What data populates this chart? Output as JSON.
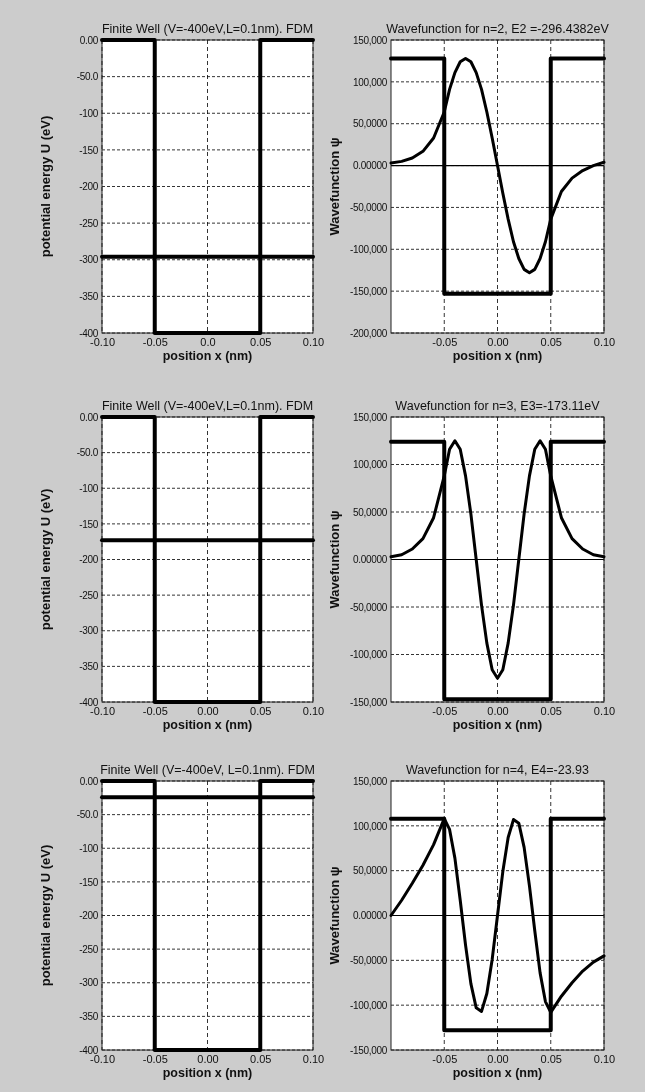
{
  "chart_data": [
    {
      "type": "line",
      "title": "Finite Well (V=-400eV,L=0.1nm). FDM",
      "xlabel": "position  x  (nm)",
      "ylabel": "potential energy U (eV)",
      "xlim": [
        -0.1,
        0.1
      ],
      "ylim": [
        -400,
        0
      ],
      "xticks": [
        {
          "value": -0.1,
          "label": "-0.10"
        },
        {
          "value": -0.05,
          "label": "-0.05"
        },
        {
          "value": 0,
          "label": "0.0"
        },
        {
          "value": 0.05,
          "label": "0.05"
        },
        {
          "value": 0.1,
          "label": "0.10"
        }
      ],
      "yticks": [
        {
          "value": 0,
          "label": "0.00"
        },
        {
          "value": -50,
          "label": "-50.0"
        },
        -100,
        -150,
        -200,
        -250,
        -300,
        -350,
        -400
      ],
      "grid": true,
      "series": [
        {
          "type": "line",
          "color": "#000000",
          "x": [
            -0.1,
            -0.05,
            -0.05,
            0.05,
            0.05,
            0.1
          ],
          "values": [
            0,
            0,
            -400,
            -400,
            0,
            0
          ]
        },
        {
          "type": "line",
          "color": "#000000",
          "x": [
            -0.1,
            0.1
          ],
          "values": [
            -296,
            -296
          ]
        }
      ]
    },
    {
      "type": "line",
      "title": "Wavefunction for n=2, E2 =-296.4382eV",
      "xlabel": "position x (nm)",
      "ylabel": "Wavefunction ψ",
      "xlim": [
        -0.1,
        0.1
      ],
      "ylim": [
        -200000,
        150000
      ],
      "xticks": [
        {
          "value": -0.05,
          "label": "-0.05"
        },
        {
          "value": 0,
          "label": "0.00"
        },
        {
          "value": 0.05,
          "label": "0.05"
        },
        {
          "value": 0.1,
          "label": "0.10"
        }
      ],
      "yticks": [
        {
          "value": 150000,
          "label": "150,000"
        },
        {
          "value": 100000,
          "label": "100,000"
        },
        {
          "value": 50000,
          "label": "50,0000"
        },
        {
          "value": 0,
          "label": "0.00000"
        },
        {
          "value": -50000,
          "label": "-50,0000"
        },
        {
          "value": -100000,
          "label": "-100,000"
        },
        {
          "value": -150000,
          "label": "-150,000"
        },
        {
          "value": -200000,
          "label": "-200,000"
        }
      ],
      "grid": true,
      "ref_lines": [
        {
          "axis": "y",
          "value": 0
        }
      ],
      "series": [
        {
          "type": "line",
          "color": "#000000",
          "x": [
            -0.1,
            -0.09,
            -0.08,
            -0.07,
            -0.06,
            -0.05,
            -0.045,
            -0.04,
            -0.035,
            -0.03,
            -0.025,
            -0.02,
            -0.015,
            -0.01,
            -0.005,
            0,
            0.005,
            0.01,
            0.015,
            0.02,
            0.025,
            0.03,
            0.035,
            0.04,
            0.045,
            0.05,
            0.06,
            0.07,
            0.08,
            0.09,
            0.1
          ],
          "values": [
            3000,
            5000,
            9000,
            17000,
            33000,
            64000,
            91000,
            111000,
            124000,
            128000,
            124000,
            111000,
            91000,
            64000,
            33000,
            0,
            -33000,
            -64000,
            -91000,
            -111000,
            -124000,
            -128000,
            -124000,
            -111000,
            -91000,
            -64000,
            -31000,
            -15000,
            -6000,
            0,
            4000
          ]
        },
        {
          "type": "line",
          "color": "#000000",
          "x": [
            -0.1,
            -0.05,
            -0.05,
            0.05,
            0.05,
            0.1
          ],
          "values": [
            128000,
            128000,
            -153000,
            -153000,
            128000,
            128000
          ]
        }
      ]
    },
    {
      "type": "line",
      "title": "Finite Well (V=-400eV,L=0.1nm). FDM",
      "xlabel": "position  x  (nm)",
      "ylabel": "potential energy U (eV)",
      "xlim": [
        -0.1,
        0.1
      ],
      "ylim": [
        -400,
        0
      ],
      "xticks": [
        {
          "value": -0.1,
          "label": "-0.10"
        },
        {
          "value": -0.05,
          "label": "-0.05"
        },
        {
          "value": 0,
          "label": "0.00"
        },
        {
          "value": 0.05,
          "label": "0.05"
        },
        {
          "value": 0.1,
          "label": "0.10"
        }
      ],
      "yticks": [
        {
          "value": 0,
          "label": "0.00"
        },
        {
          "value": -50,
          "label": "-50.0"
        },
        -100,
        -150,
        -200,
        -250,
        -300,
        -350,
        -400
      ],
      "grid": true,
      "series": [
        {
          "type": "line",
          "color": "#000000",
          "x": [
            -0.1,
            -0.05,
            -0.05,
            0.05,
            0.05,
            0.1
          ],
          "values": [
            0,
            0,
            -400,
            -400,
            0,
            0
          ]
        },
        {
          "type": "line",
          "color": "#000000",
          "x": [
            -0.1,
            0.1
          ],
          "values": [
            -173,
            -173
          ]
        }
      ]
    },
    {
      "type": "line",
      "title": "Wavefunction for n=3, E3=-173.11eV",
      "xlabel": "position x (nm)",
      "ylabel": "Wavefunction ψ",
      "xlim": [
        -0.1,
        0.1
      ],
      "ylim": [
        -150000,
        150000
      ],
      "xticks": [
        {
          "value": -0.05,
          "label": "-0.05"
        },
        {
          "value": 0,
          "label": "0.00"
        },
        {
          "value": 0.05,
          "label": "0.05"
        },
        {
          "value": 0.1,
          "label": "0.10"
        }
      ],
      "yticks": [
        {
          "value": 150000,
          "label": "150,000"
        },
        {
          "value": 100000,
          "label": "100,000"
        },
        {
          "value": 50000,
          "label": "50,0000"
        },
        {
          "value": 0,
          "label": "0.00000"
        },
        {
          "value": -50000,
          "label": "-50,0000"
        },
        {
          "value": -100000,
          "label": "-100,000"
        },
        {
          "value": -150000,
          "label": "-150,000"
        }
      ],
      "grid": true,
      "ref_lines": [
        {
          "axis": "y",
          "value": 0
        }
      ],
      "series": [
        {
          "type": "line",
          "color": "#000000",
          "x": [
            -0.1,
            -0.09,
            -0.08,
            -0.07,
            -0.06,
            -0.05,
            -0.045,
            -0.04,
            -0.035,
            -0.03,
            -0.025,
            -0.02,
            -0.015,
            -0.01,
            -0.005,
            0,
            0.005,
            0.01,
            0.015,
            0.02,
            0.025,
            0.03,
            0.035,
            0.04,
            0.045,
            0.05,
            0.06,
            0.07,
            0.08,
            0.09,
            0.1
          ],
          "values": [
            3000,
            5000,
            11000,
            22000,
            44000,
            88000,
            116000,
            125000,
            116000,
            88000,
            48000,
            0,
            -48000,
            -88000,
            -116000,
            -125000,
            -116000,
            -88000,
            -48000,
            0,
            48000,
            88000,
            116000,
            125000,
            116000,
            88000,
            44000,
            22000,
            11000,
            5000,
            3000
          ]
        },
        {
          "type": "line",
          "color": "#000000",
          "x": [
            -0.1,
            -0.05,
            -0.05,
            0.05,
            0.05,
            0.1
          ],
          "values": [
            124000,
            124000,
            -147000,
            -147000,
            124000,
            124000
          ]
        }
      ]
    },
    {
      "type": "line",
      "title": "Finite Well (V=-400eV, L=0.1nm). FDM",
      "xlabel": "position  x  (nm)",
      "ylabel": "potential energy U (eV)",
      "xlim": [
        -0.1,
        0.1
      ],
      "ylim": [
        -400,
        0
      ],
      "xticks": [
        {
          "value": -0.1,
          "label": "-0.10"
        },
        {
          "value": -0.05,
          "label": "-0.05"
        },
        {
          "value": 0,
          "label": "0.00"
        },
        {
          "value": 0.05,
          "label": "0.05"
        },
        {
          "value": 0.1,
          "label": "0.10"
        }
      ],
      "yticks": [
        {
          "value": 0,
          "label": "0.00"
        },
        {
          "value": -50,
          "label": "-50.0"
        },
        -100,
        -150,
        -200,
        -250,
        -300,
        -350,
        -400
      ],
      "grid": true,
      "series": [
        {
          "type": "line",
          "color": "#000000",
          "x": [
            -0.1,
            -0.05,
            -0.05,
            0.05,
            0.05,
            0.1
          ],
          "values": [
            0,
            0,
            -400,
            -400,
            0,
            0
          ]
        },
        {
          "type": "line",
          "color": "#000000",
          "x": [
            -0.1,
            0.1
          ],
          "values": [
            -24,
            -24
          ]
        }
      ]
    },
    {
      "type": "line",
      "title": "Wavefunction for n=4, E4=-23.93",
      "xlabel": "position x (nm)",
      "ylabel": "Wavefunction ψ",
      "xlim": [
        -0.1,
        0.1
      ],
      "ylim": [
        -150000,
        150000
      ],
      "xticks": [
        {
          "value": -0.05,
          "label": "-0.05"
        },
        {
          "value": 0,
          "label": "0.00"
        },
        {
          "value": 0.05,
          "label": "0.05"
        },
        {
          "value": 0.1,
          "label": "0.10"
        }
      ],
      "yticks": [
        {
          "value": 150000,
          "label": "150,000"
        },
        {
          "value": 100000,
          "label": "100,000"
        },
        {
          "value": 50000,
          "label": "50,0000"
        },
        {
          "value": 0,
          "label": "0.00000"
        },
        {
          "value": -50000,
          "label": "-50,0000"
        },
        {
          "value": -100000,
          "label": "-100,000"
        },
        {
          "value": -150000,
          "label": "-150,000"
        }
      ],
      "grid": true,
      "ref_lines": [
        {
          "axis": "y",
          "value": 0
        }
      ],
      "series": [
        {
          "type": "line",
          "color": "#000000",
          "x": [
            -0.1,
            -0.09,
            -0.08,
            -0.07,
            -0.06,
            -0.05,
            -0.045,
            -0.04,
            -0.035,
            -0.03,
            -0.025,
            -0.02,
            -0.015,
            -0.01,
            -0.005,
            0,
            0.005,
            0.01,
            0.015,
            0.02,
            0.025,
            0.03,
            0.035,
            0.04,
            0.045,
            0.05,
            0.06,
            0.07,
            0.08,
            0.09,
            0.1
          ],
          "values": [
            0,
            17000,
            36000,
            56000,
            79000,
            108000,
            96000,
            64000,
            17000,
            -33000,
            -76000,
            -103000,
            -107000,
            -87000,
            -49000,
            0,
            49000,
            87000,
            107000,
            103000,
            76000,
            33000,
            -17000,
            -64000,
            -96000,
            -108000,
            -90000,
            -75000,
            -62000,
            -52000,
            -45000
          ]
        },
        {
          "type": "line",
          "color": "#000000",
          "x": [
            -0.1,
            -0.05,
            -0.05,
            0.05,
            0.05,
            0.1
          ],
          "values": [
            108000,
            108000,
            -128000,
            -128000,
            108000,
            108000
          ]
        }
      ]
    }
  ]
}
